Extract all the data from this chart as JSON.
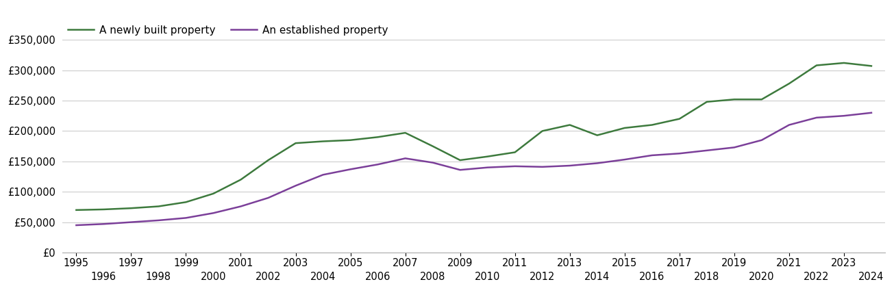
{
  "newly_built": {
    "years": [
      1995,
      1996,
      1997,
      1998,
      1999,
      2000,
      2001,
      2002,
      2003,
      2004,
      2005,
      2006,
      2007,
      2008,
      2009,
      2010,
      2011,
      2012,
      2013,
      2014,
      2015,
      2016,
      2017,
      2018,
      2019,
      2020,
      2021,
      2022,
      2023,
      2024
    ],
    "values": [
      70000,
      71000,
      73000,
      76000,
      83000,
      97000,
      120000,
      152000,
      180000,
      183000,
      185000,
      190000,
      197000,
      175000,
      152000,
      158000,
      165000,
      200000,
      210000,
      193000,
      205000,
      210000,
      220000,
      248000,
      252000,
      252000,
      278000,
      308000,
      312000,
      307000
    ]
  },
  "established": {
    "years": [
      1995,
      1996,
      1997,
      1998,
      1999,
      2000,
      2001,
      2002,
      2003,
      2004,
      2005,
      2006,
      2007,
      2008,
      2009,
      2010,
      2011,
      2012,
      2013,
      2014,
      2015,
      2016,
      2017,
      2018,
      2019,
      2020,
      2021,
      2022,
      2023,
      2024
    ],
    "values": [
      45000,
      47000,
      50000,
      53000,
      57000,
      65000,
      76000,
      90000,
      110000,
      128000,
      137000,
      145000,
      155000,
      148000,
      136000,
      140000,
      142000,
      141000,
      143000,
      147000,
      153000,
      160000,
      163000,
      168000,
      173000,
      185000,
      210000,
      222000,
      225000,
      230000
    ]
  },
  "newly_built_color": "#3d7a3d",
  "established_color": "#7b3f99",
  "newly_built_label": "A newly built property",
  "established_label": "An established property",
  "ylim": [
    0,
    375000
  ],
  "yticks": [
    0,
    50000,
    100000,
    150000,
    200000,
    250000,
    300000,
    350000
  ],
  "xlim_min": 1994.5,
  "xlim_max": 2024.5,
  "xticks_top_row": [
    1995,
    1997,
    1999,
    2001,
    2003,
    2005,
    2007,
    2009,
    2011,
    2013,
    2015,
    2017,
    2019,
    2021,
    2023
  ],
  "xticks_bottom_row": [
    1996,
    1998,
    2000,
    2002,
    2004,
    2006,
    2008,
    2010,
    2012,
    2014,
    2016,
    2018,
    2020,
    2022,
    2024
  ],
  "background_color": "#ffffff",
  "grid_color": "#cccccc",
  "line_width": 1.8,
  "tick_label_fontsize": 10.5,
  "legend_fontsize": 11
}
